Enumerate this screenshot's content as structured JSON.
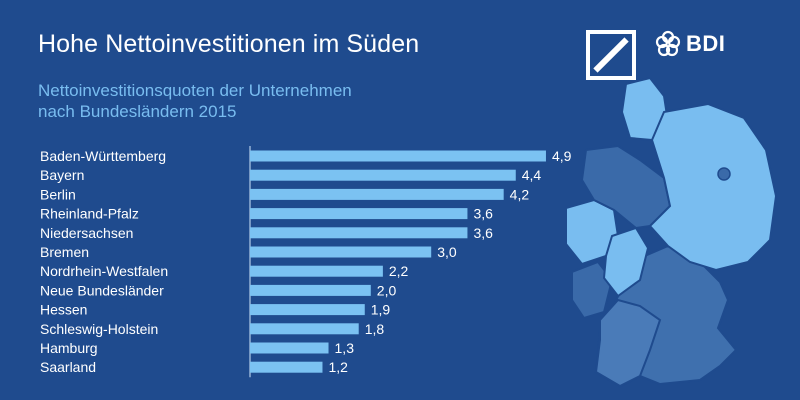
{
  "title": "Hohe Nettoinvestitionen im Süden",
  "subtitle": {
    "line1": "Nettoinvestitionsquoten der Unternehmen",
    "line2": "nach Bundesländern 2015"
  },
  "logos": {
    "deutsche_bank": "deutsche-bank-logo",
    "bdi": "BDI"
  },
  "colors": {
    "background": "#1f4b8e",
    "bar": "#7bc2f2",
    "subtitle": "#79bdf0",
    "map_south": "#3f70ae",
    "map_north": "#2a5f9f",
    "map_highlight": "#79bdf0",
    "text": "#ffffff"
  },
  "chart_data": {
    "type": "bar",
    "orientation": "horizontal",
    "title": "Hohe Nettoinvestitionen im Süden",
    "subtitle": "Nettoinvestitionsquoten der Unternehmen nach Bundesländern 2015",
    "categories": [
      "Baden-Württemberg",
      "Bayern",
      "Berlin",
      "Rheinland-Pfalz",
      "Niedersachsen",
      "Bremen",
      "Nordrhein-Westfalen",
      "Neue Bundesländer",
      "Hessen",
      "Schleswig-Holstein",
      "Hamburg",
      "Saarland"
    ],
    "values": [
      4.9,
      4.4,
      4.2,
      3.6,
      3.6,
      3.0,
      2.2,
      2.0,
      1.9,
      1.8,
      1.3,
      1.2
    ],
    "value_labels": [
      "4,9",
      "4,4",
      "4,2",
      "3,6",
      "3,6",
      "3,0",
      "2,2",
      "2,0",
      "1,9",
      "1,8",
      "1,3",
      "1,2"
    ],
    "xlim": [
      0,
      5
    ],
    "grid": false,
    "legend": "none",
    "xlabel": "",
    "ylabel": ""
  }
}
